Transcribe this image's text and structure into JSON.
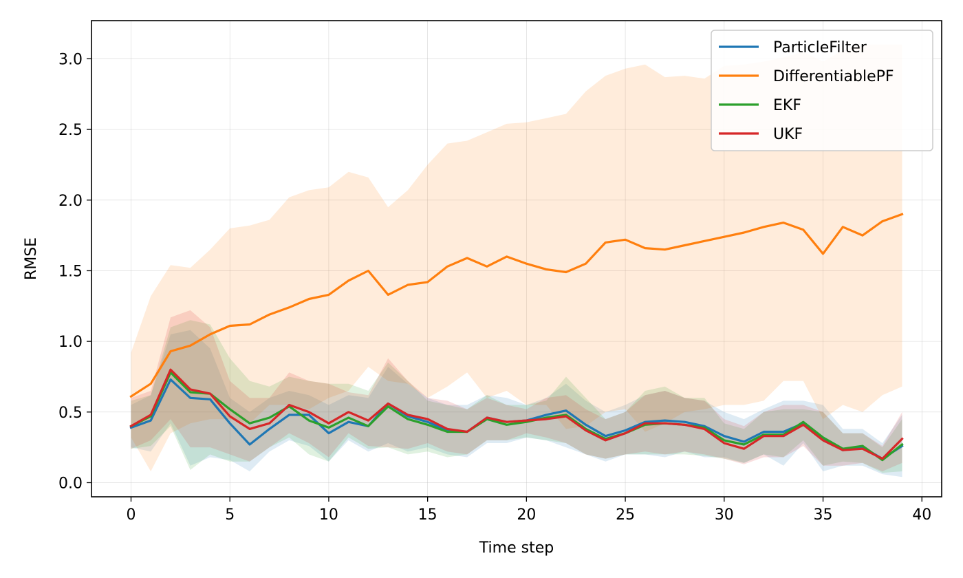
{
  "chart_data": {
    "type": "line",
    "title": "",
    "xlabel": "Time step",
    "ylabel": "RMSE",
    "xlim": [
      -2,
      41
    ],
    "ylim": [
      -0.1,
      3.27
    ],
    "x_ticks": [
      0,
      5,
      10,
      15,
      20,
      25,
      30,
      35,
      40
    ],
    "y_ticks": [
      0.0,
      0.5,
      1.0,
      1.5,
      2.0,
      2.5,
      3.0
    ],
    "x_tick_labels": [
      "0",
      "5",
      "10",
      "15",
      "20",
      "25",
      "30",
      "35",
      "40"
    ],
    "y_tick_labels": [
      "0.0",
      "0.5",
      "1.0",
      "1.5",
      "2.0",
      "2.5",
      "3.0"
    ],
    "grid": true,
    "legend_position": "top-right",
    "x": [
      0,
      1,
      2,
      3,
      4,
      5,
      6,
      7,
      8,
      9,
      10,
      11,
      12,
      13,
      14,
      15,
      16,
      17,
      18,
      19,
      20,
      21,
      22,
      23,
      24,
      25,
      26,
      27,
      28,
      29,
      30,
      31,
      32,
      33,
      34,
      35,
      36,
      37,
      38,
      39
    ],
    "series": [
      {
        "name": "ParticleFilter",
        "color": "#1f77b4",
        "values": [
          0.39,
          0.44,
          0.73,
          0.6,
          0.59,
          0.42,
          0.27,
          0.38,
          0.48,
          0.48,
          0.35,
          0.43,
          0.4,
          0.56,
          0.47,
          0.43,
          0.37,
          0.36,
          0.46,
          0.43,
          0.44,
          0.48,
          0.51,
          0.41,
          0.33,
          0.37,
          0.43,
          0.44,
          0.43,
          0.4,
          0.33,
          0.29,
          0.36,
          0.36,
          0.42,
          0.31,
          0.23,
          0.25,
          0.17,
          0.26
        ],
        "band_upper": [
          0.55,
          0.62,
          1.05,
          1.08,
          0.95,
          0.6,
          0.5,
          0.6,
          0.65,
          0.62,
          0.55,
          0.62,
          0.6,
          0.82,
          0.7,
          0.6,
          0.55,
          0.55,
          0.62,
          0.6,
          0.55,
          0.6,
          0.7,
          0.58,
          0.5,
          0.55,
          0.62,
          0.65,
          0.6,
          0.58,
          0.5,
          0.45,
          0.52,
          0.58,
          0.58,
          0.55,
          0.38,
          0.38,
          0.28,
          0.48
        ],
        "band_lower": [
          0.25,
          0.22,
          0.42,
          0.12,
          0.18,
          0.16,
          0.08,
          0.22,
          0.3,
          0.26,
          0.15,
          0.3,
          0.22,
          0.28,
          0.22,
          0.25,
          0.2,
          0.18,
          0.28,
          0.28,
          0.32,
          0.3,
          0.25,
          0.2,
          0.15,
          0.2,
          0.2,
          0.18,
          0.22,
          0.18,
          0.18,
          0.14,
          0.2,
          0.12,
          0.28,
          0.08,
          0.12,
          0.12,
          0.06,
          0.04
        ]
      },
      {
        "name": "DifferentiablePF",
        "color": "#ff7f0e",
        "values": [
          0.61,
          0.7,
          0.93,
          0.97,
          1.05,
          1.11,
          1.12,
          1.19,
          1.24,
          1.3,
          1.33,
          1.43,
          1.5,
          1.33,
          1.4,
          1.42,
          1.53,
          1.59,
          1.53,
          1.6,
          1.55,
          1.51,
          1.49,
          1.55,
          1.7,
          1.72,
          1.66,
          1.65,
          1.68,
          1.71,
          1.74,
          1.77,
          1.81,
          1.84,
          1.79,
          1.62,
          1.81,
          1.75,
          1.85,
          1.9
        ],
        "band_upper": [
          0.92,
          1.32,
          1.54,
          1.52,
          1.65,
          1.8,
          1.82,
          1.86,
          2.02,
          2.07,
          2.09,
          2.2,
          2.16,
          1.95,
          2.07,
          2.25,
          2.4,
          2.42,
          2.48,
          2.54,
          2.55,
          2.58,
          2.61,
          2.77,
          2.88,
          2.93,
          2.96,
          2.87,
          2.88,
          2.86,
          2.95,
          2.96,
          2.98,
          3.01,
          3.05,
          2.98,
          3.06,
          3.1,
          3.1,
          3.1
        ],
        "band_lower": [
          0.32,
          0.08,
          0.35,
          0.42,
          0.45,
          0.45,
          0.42,
          0.55,
          0.55,
          0.52,
          0.6,
          0.65,
          0.82,
          0.72,
          0.7,
          0.6,
          0.68,
          0.78,
          0.6,
          0.65,
          0.55,
          0.55,
          0.38,
          0.4,
          0.5,
          0.52,
          0.36,
          0.42,
          0.5,
          0.52,
          0.55,
          0.55,
          0.58,
          0.72,
          0.72,
          0.45,
          0.55,
          0.5,
          0.62,
          0.68
        ]
      },
      {
        "name": "EKF",
        "color": "#2ca02c",
        "values": [
          0.4,
          0.47,
          0.78,
          0.64,
          0.63,
          0.52,
          0.42,
          0.46,
          0.54,
          0.44,
          0.39,
          0.46,
          0.4,
          0.54,
          0.45,
          0.41,
          0.36,
          0.36,
          0.45,
          0.41,
          0.43,
          0.46,
          0.48,
          0.38,
          0.31,
          0.35,
          0.41,
          0.42,
          0.41,
          0.39,
          0.3,
          0.27,
          0.34,
          0.34,
          0.43,
          0.32,
          0.24,
          0.26,
          0.16,
          0.27
        ],
        "band_upper": [
          0.58,
          0.62,
          1.1,
          1.15,
          1.12,
          0.88,
          0.72,
          0.68,
          0.75,
          0.72,
          0.7,
          0.7,
          0.65,
          0.85,
          0.72,
          0.58,
          0.55,
          0.52,
          0.62,
          0.55,
          0.55,
          0.58,
          0.75,
          0.6,
          0.45,
          0.5,
          0.65,
          0.68,
          0.6,
          0.6,
          0.42,
          0.38,
          0.5,
          0.52,
          0.52,
          0.5,
          0.35,
          0.35,
          0.25,
          0.45
        ],
        "band_lower": [
          0.24,
          0.26,
          0.4,
          0.09,
          0.2,
          0.15,
          0.15,
          0.25,
          0.32,
          0.2,
          0.15,
          0.32,
          0.24,
          0.25,
          0.2,
          0.22,
          0.18,
          0.2,
          0.3,
          0.3,
          0.32,
          0.3,
          0.28,
          0.2,
          0.17,
          0.2,
          0.2,
          0.2,
          0.2,
          0.19,
          0.17,
          0.14,
          0.2,
          0.18,
          0.3,
          0.12,
          0.15,
          0.14,
          0.07,
          0.08
        ]
      },
      {
        "name": "UKF",
        "color": "#d62728",
        "values": [
          0.4,
          0.48,
          0.8,
          0.66,
          0.63,
          0.47,
          0.38,
          0.42,
          0.55,
          0.5,
          0.42,
          0.5,
          0.44,
          0.56,
          0.48,
          0.45,
          0.38,
          0.36,
          0.46,
          0.43,
          0.44,
          0.45,
          0.47,
          0.37,
          0.3,
          0.35,
          0.42,
          0.42,
          0.41,
          0.38,
          0.28,
          0.24,
          0.33,
          0.33,
          0.41,
          0.3,
          0.23,
          0.24,
          0.17,
          0.31
        ],
        "band_upper": [
          0.6,
          0.65,
          1.17,
          1.22,
          1.1,
          0.72,
          0.6,
          0.6,
          0.78,
          0.72,
          0.7,
          0.64,
          0.62,
          0.88,
          0.72,
          0.6,
          0.58,
          0.52,
          0.6,
          0.55,
          0.52,
          0.6,
          0.62,
          0.52,
          0.45,
          0.5,
          0.62,
          0.65,
          0.6,
          0.58,
          0.45,
          0.4,
          0.5,
          0.55,
          0.55,
          0.5,
          0.35,
          0.35,
          0.26,
          0.5
        ],
        "band_lower": [
          0.24,
          0.3,
          0.45,
          0.25,
          0.25,
          0.2,
          0.15,
          0.25,
          0.35,
          0.28,
          0.18,
          0.35,
          0.26,
          0.25,
          0.24,
          0.28,
          0.22,
          0.2,
          0.3,
          0.3,
          0.35,
          0.32,
          0.28,
          0.2,
          0.17,
          0.2,
          0.22,
          0.2,
          0.22,
          0.2,
          0.17,
          0.13,
          0.18,
          0.18,
          0.26,
          0.12,
          0.12,
          0.14,
          0.08,
          0.14
        ]
      }
    ]
  }
}
